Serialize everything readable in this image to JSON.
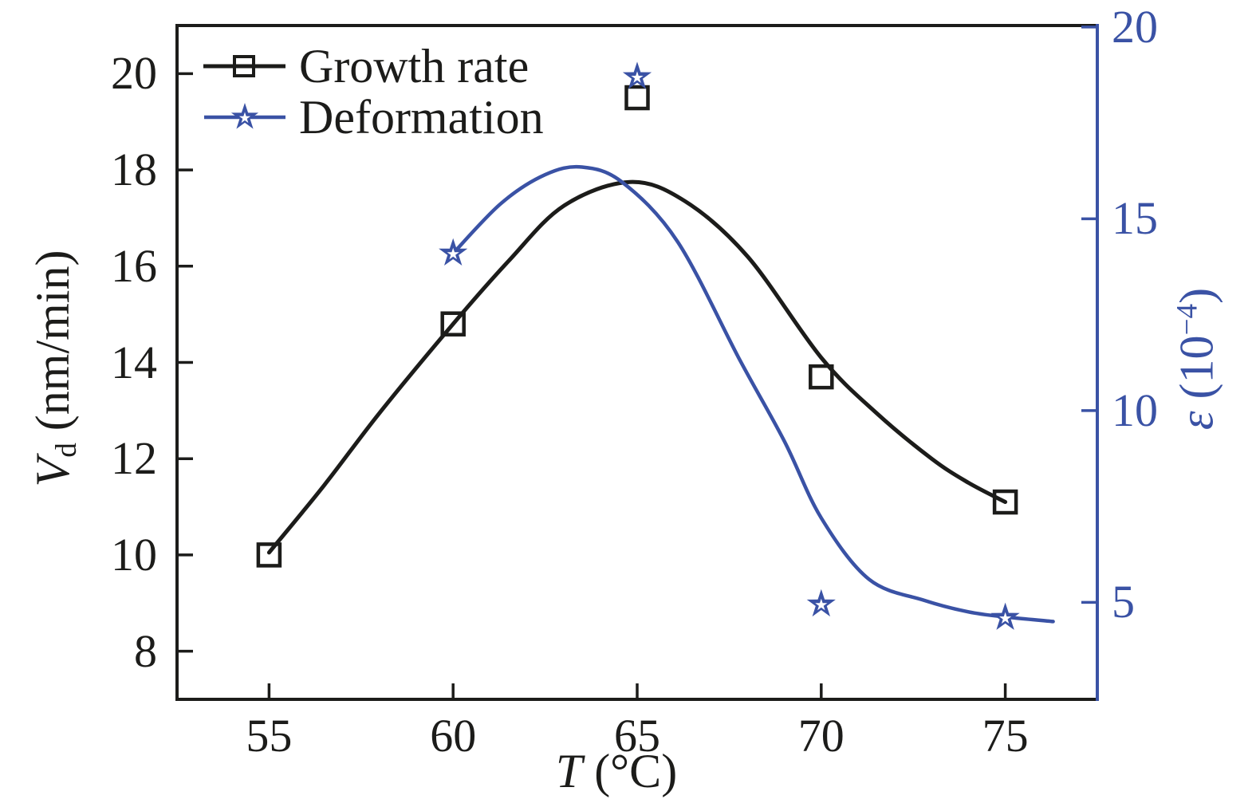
{
  "colors": {
    "black_series": "#1c1c1a",
    "blue_series": "#3a52a5",
    "background": "#ffffff"
  },
  "axes": {
    "x": {
      "label_italic": "T",
      "label_rest": " (°C)",
      "ticks": [
        "55",
        "60",
        "65",
        "70",
        "75"
      ]
    },
    "left": {
      "label_italic": "V",
      "label_sub": "d",
      "label_rest": " (nm/min)",
      "ticks": [
        "8",
        "10",
        "12",
        "14",
        "16",
        "18",
        "20"
      ]
    },
    "right": {
      "label_italic": "ε",
      "label_pre": " (10",
      "label_sup": "−4",
      "label_post": ")",
      "ticks": [
        "5",
        "10",
        "15",
        "20"
      ]
    }
  },
  "legend": {
    "items": [
      {
        "label": "Growth rate",
        "marker": "open-square",
        "color": "#1c1c1a"
      },
      {
        "label": "Deformation",
        "marker": "star",
        "color": "#3a52a5"
      }
    ]
  },
  "chart_data": {
    "type": "line",
    "title": "",
    "xlabel": "T (°C)",
    "ylabel_left": "Vd (nm/min)",
    "ylabel_right": "ε (10−4)",
    "grid": false,
    "legend_position": "top-left-inside",
    "xlim": [
      52.5,
      77.5
    ],
    "x_ticks": [
      55,
      60,
      65,
      70,
      75
    ],
    "ylim_left": [
      7,
      21
    ],
    "left_ticks": [
      8,
      10,
      12,
      14,
      16,
      18,
      20
    ],
    "ylim_right": [
      2.47,
      20.04
    ],
    "right_ticks": [
      5,
      10,
      15,
      20
    ],
    "series": [
      {
        "name": "Growth rate",
        "axis": "left",
        "marker": "open-square",
        "color": "#1c1c1a",
        "points": [
          [
            55,
            10.0
          ],
          [
            60,
            14.8
          ],
          [
            65,
            19.5
          ],
          [
            70,
            13.7
          ],
          [
            75,
            11.1
          ]
        ],
        "fit_curve": [
          [
            55,
            10.05
          ],
          [
            56.5,
            11.45
          ],
          [
            58,
            12.95
          ],
          [
            60,
            14.8
          ],
          [
            61.5,
            16.1
          ],
          [
            63,
            17.25
          ],
          [
            64.8,
            17.75
          ],
          [
            66.3,
            17.35
          ],
          [
            68,
            16.2
          ],
          [
            70,
            14.1
          ],
          [
            71.5,
            12.95
          ],
          [
            73,
            12.0
          ],
          [
            74,
            11.5
          ],
          [
            75,
            11.1
          ]
        ]
      },
      {
        "name": "Deformation",
        "axis": "right",
        "marker": "star",
        "color": "#3a52a5",
        "points": [
          [
            60,
            14.1
          ],
          [
            65,
            18.7
          ],
          [
            70,
            4.95
          ],
          [
            75,
            4.6
          ]
        ],
        "fit_curve": [
          [
            60,
            14.1
          ],
          [
            61.3,
            15.4
          ],
          [
            62.5,
            16.15
          ],
          [
            63.5,
            16.35
          ],
          [
            64.6,
            15.95
          ],
          [
            66.1,
            14.4
          ],
          [
            67.8,
            11.3
          ],
          [
            69,
            9.2
          ],
          [
            70,
            7.2
          ],
          [
            71.3,
            5.6
          ],
          [
            72.8,
            5.05
          ],
          [
            74,
            4.75
          ],
          [
            75,
            4.62
          ],
          [
            76.3,
            4.5
          ]
        ]
      }
    ]
  }
}
